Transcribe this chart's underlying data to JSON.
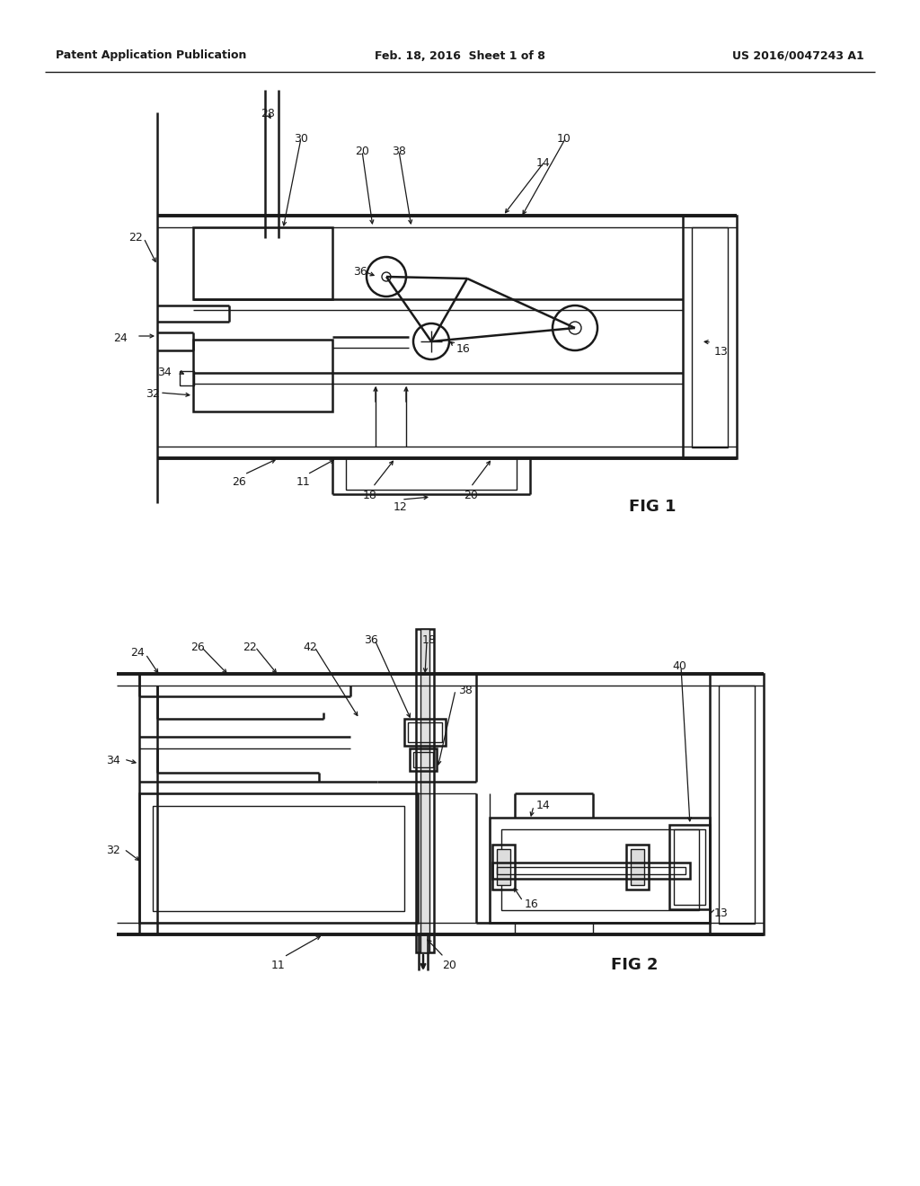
{
  "bg": "#ffffff",
  "lc": "#1a1a1a",
  "tc": "#1a1a1a",
  "header_left": "Patent Application Publication",
  "header_center": "Feb. 18, 2016  Sheet 1 of 8",
  "header_right": "US 2016/0047243 A1",
  "fig1_label": "FIG 1",
  "fig2_label": "FIG 2",
  "hfs": 9,
  "lfs": 9,
  "ffs": 13
}
